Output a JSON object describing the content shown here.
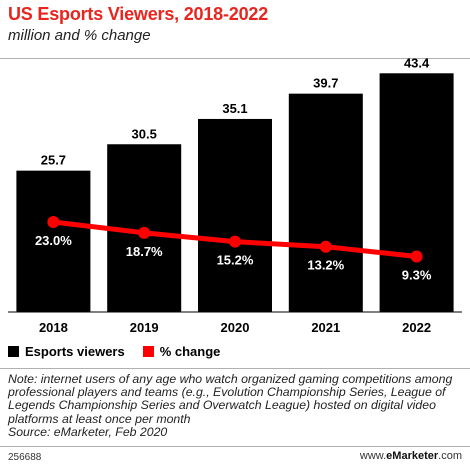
{
  "header": {
    "title": "US Esports Viewers, 2018-2022",
    "subtitle": "million and % change"
  },
  "chart_data": {
    "type": "bar",
    "categories": [
      "2018",
      "2019",
      "2020",
      "2021",
      "2022"
    ],
    "series": [
      {
        "name": "Esports viewers",
        "type": "bar",
        "color": "#000000",
        "values": [
          25.7,
          30.5,
          35.1,
          39.7,
          43.4
        ],
        "labels": [
          "25.7",
          "30.5",
          "35.1",
          "39.7",
          "43.4"
        ]
      },
      {
        "name": "% change",
        "type": "line",
        "color": "#ff0000",
        "values": [
          23.0,
          18.7,
          15.2,
          13.2,
          9.3
        ],
        "labels": [
          "23.0%",
          "18.7%",
          "15.2%",
          "13.2%",
          "9.3%"
        ]
      }
    ],
    "ylim": [
      0,
      45
    ],
    "grid": false,
    "legend_position": "bottom-left"
  },
  "legend": {
    "bar_label": "Esports viewers",
    "line_label": "% change"
  },
  "note": "Note: internet users of any age who watch organized gaming competitions among professional players and teams (e.g., Evolution Championship Series, League of Legends Championship Series and Overwatch League) hosted on digital video platforms at least once per month",
  "source": "Source: eMarketer, Feb 2020",
  "footer": {
    "chart_id": "256688",
    "brand_prefix": "www.",
    "brand_bold": "eMarketer",
    "brand_suffix": ".com"
  }
}
